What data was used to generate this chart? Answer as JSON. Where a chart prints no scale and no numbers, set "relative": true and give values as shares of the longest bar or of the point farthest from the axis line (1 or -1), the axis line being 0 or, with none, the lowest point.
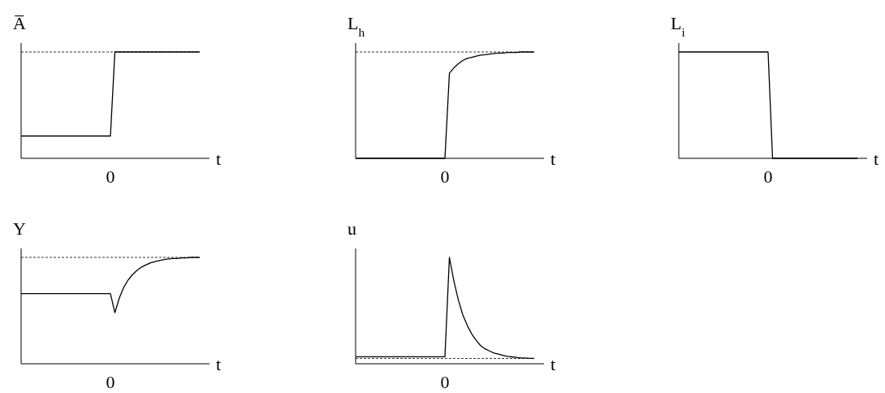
{
  "chart_data": [
    {
      "type": "line",
      "title": "A̅",
      "xlabel": "t",
      "relative": true,
      "line_style": "solid",
      "annotations": [
        "0"
      ],
      "ref_lines": [
        {
          "axis": "y",
          "value": 1,
          "line_style": "dashed"
        }
      ],
      "categories": [
        null,
        null,
        null,
        null,
        null,
        null,
        null,
        null,
        null,
        null,
        null,
        null,
        null,
        null,
        null,
        null,
        null,
        null,
        null,
        null,
        null,
        null,
        null,
        null,
        null,
        null,
        null,
        null,
        null,
        null,
        null,
        null,
        null,
        null,
        null,
        null,
        null,
        null,
        null,
        null,
        null
      ],
      "series": [
        {
          "color": "#000000",
          "values": [
            0.21,
            0.21,
            0.21,
            0.21,
            0.21,
            0.21,
            0.21,
            0.21,
            0.21,
            0.21,
            0.21,
            0.21,
            0.21,
            0.21,
            0.21,
            0.21,
            0.21,
            0.21,
            0.21,
            0.21,
            0.21,
            1,
            1,
            1,
            1,
            1,
            1,
            1,
            1,
            1,
            1,
            1,
            1,
            1,
            1,
            1,
            1,
            1,
            1,
            1,
            1
          ]
        }
      ]
    },
    {
      "type": "line",
      "title": "L$_{h}$",
      "xlabel": "t",
      "relative": true,
      "line_style": "solid",
      "annotations": [
        "0"
      ],
      "ref_lines": [
        {
          "axis": "y",
          "value": 1,
          "line_style": "dashed"
        }
      ],
      "categories": [
        null,
        null,
        null,
        null,
        null,
        null,
        null,
        null,
        null,
        null,
        null,
        null,
        null,
        null,
        null,
        null,
        null,
        null,
        null,
        null,
        null,
        null,
        null,
        null,
        null,
        null,
        null,
        null,
        null,
        null,
        null,
        null,
        null,
        null,
        null,
        null,
        null,
        null,
        null,
        null,
        null
      ],
      "series": [
        {
          "color": "#000000",
          "values": [
            0,
            0,
            0,
            0,
            0,
            0,
            0,
            0,
            0,
            0,
            0,
            0,
            0,
            0,
            0,
            0,
            0,
            0,
            0,
            0,
            0,
            0.8,
            0.85,
            0.89,
            0.92,
            0.94,
            0.95,
            0.96,
            0.97,
            0.975,
            0.98,
            0.985,
            0.99,
            0.99,
            0.995,
            0.995,
            0.995,
            1,
            1,
            1,
            1
          ]
        }
      ]
    },
    {
      "type": "line",
      "title": "L$_{i}$",
      "xlabel": "t",
      "relative": true,
      "line_style": "solid",
      "annotations": [
        "0"
      ],
      "categories": [
        null,
        null,
        null,
        null,
        null,
        null,
        null,
        null,
        null,
        null,
        null,
        null,
        null,
        null,
        null,
        null,
        null,
        null,
        null,
        null,
        null,
        null,
        null,
        null,
        null,
        null,
        null,
        null,
        null,
        null,
        null,
        null,
        null,
        null,
        null,
        null,
        null,
        null,
        null,
        null,
        null
      ],
      "series": [
        {
          "color": "#000000",
          "values": [
            1,
            1,
            1,
            1,
            1,
            1,
            1,
            1,
            1,
            1,
            1,
            1,
            1,
            1,
            1,
            1,
            1,
            1,
            1,
            1,
            1,
            0,
            0,
            0,
            0,
            0,
            0,
            0,
            0,
            0,
            0,
            0,
            0,
            0,
            0,
            0,
            0,
            0,
            0,
            0,
            0
          ]
        }
      ]
    },
    {
      "type": "line",
      "title": "Y",
      "xlabel": "t",
      "relative": true,
      "line_style": "solid",
      "annotations": [
        "0"
      ],
      "ref_lines": [
        {
          "axis": "y",
          "value": 1,
          "line_style": "dashed"
        }
      ],
      "categories": [
        null,
        null,
        null,
        null,
        null,
        null,
        null,
        null,
        null,
        null,
        null,
        null,
        null,
        null,
        null,
        null,
        null,
        null,
        null,
        null,
        null,
        null,
        null,
        null,
        null,
        null,
        null,
        null,
        null,
        null,
        null,
        null,
        null,
        null,
        null,
        null,
        null,
        null,
        null,
        null,
        null
      ],
      "series": [
        {
          "color": "#000000",
          "values": [
            0.66,
            0.66,
            0.66,
            0.66,
            0.66,
            0.66,
            0.66,
            0.66,
            0.66,
            0.66,
            0.66,
            0.66,
            0.66,
            0.66,
            0.66,
            0.66,
            0.66,
            0.66,
            0.66,
            0.66,
            0.66,
            0.48,
            0.62,
            0.72,
            0.79,
            0.84,
            0.88,
            0.91,
            0.93,
            0.95,
            0.96,
            0.97,
            0.98,
            0.985,
            0.99,
            0.99,
            0.995,
            0.995,
            1,
            1,
            1
          ]
        }
      ]
    },
    {
      "type": "line",
      "title": "u",
      "xlabel": "t",
      "relative": true,
      "line_style": "solid",
      "annotations": [
        "0"
      ],
      "ref_lines": [
        {
          "axis": "y",
          "value": 0.05,
          "line_style": "dashed"
        }
      ],
      "categories": [
        null,
        null,
        null,
        null,
        null,
        null,
        null,
        null,
        null,
        null,
        null,
        null,
        null,
        null,
        null,
        null,
        null,
        null,
        null,
        null,
        null,
        null,
        null,
        null,
        null,
        null,
        null,
        null,
        null,
        null,
        null,
        null,
        null,
        null,
        null,
        null,
        null,
        null,
        null,
        null,
        null
      ],
      "series": [
        {
          "color": "#000000",
          "values": [
            0.066,
            0.066,
            0.066,
            0.066,
            0.066,
            0.066,
            0.066,
            0.066,
            0.066,
            0.066,
            0.066,
            0.066,
            0.066,
            0.066,
            0.066,
            0.066,
            0.066,
            0.066,
            0.066,
            0.066,
            0.066,
            1,
            0.78,
            0.6,
            0.46,
            0.36,
            0.28,
            0.22,
            0.17,
            0.14,
            0.12,
            0.1,
            0.09,
            0.08,
            0.07,
            0.065,
            0.06,
            0.055,
            0.055,
            0.05,
            0.05
          ]
        }
      ]
    }
  ]
}
